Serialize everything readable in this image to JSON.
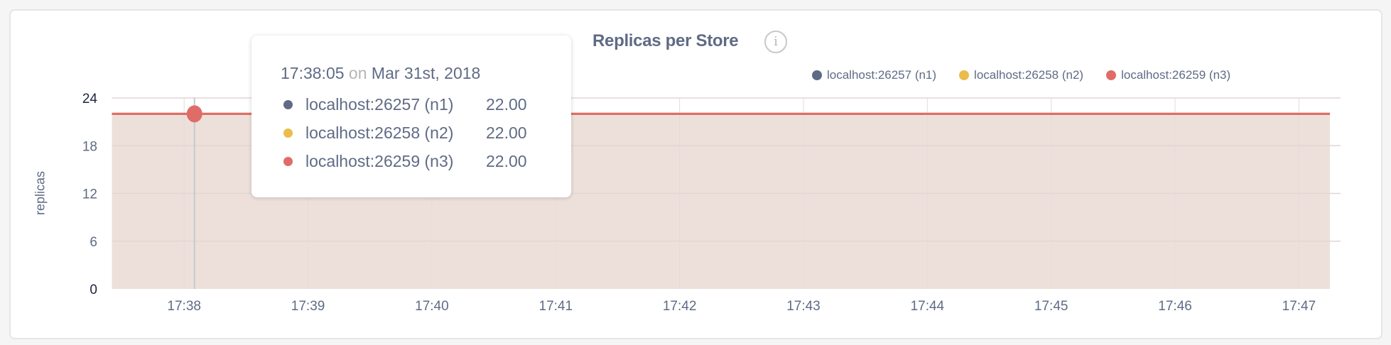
{
  "chart_data": {
    "type": "area",
    "title": "Replicas per Store",
    "ylabel": "replicas",
    "xlabel": "",
    "ylim": [
      0,
      24
    ],
    "yticks": [
      "0",
      "6",
      "12",
      "18",
      "24"
    ],
    "xlim": [
      "17:37:25",
      "17:47:15"
    ],
    "xticks": [
      "17:38",
      "17:39",
      "17:40",
      "17:41",
      "17:42",
      "17:43",
      "17:44",
      "17:45",
      "17:46",
      "17:47"
    ],
    "grid": true,
    "legend_position": "top-right",
    "series": [
      {
        "name": "localhost:26257 (n1)",
        "color": "#5f6b85",
        "points": [
          {
            "x": "17:37:25",
            "y": 22
          },
          {
            "x": "17:47:15",
            "y": 22
          }
        ]
      },
      {
        "name": "localhost:26258 (n2)",
        "color": "#e9bd4b",
        "points": [
          {
            "x": "17:37:25",
            "y": 22
          },
          {
            "x": "17:47:15",
            "y": 22
          }
        ]
      },
      {
        "name": "localhost:26259 (n3)",
        "color": "#e06c68",
        "points": [
          {
            "x": "17:37:25",
            "y": 22
          },
          {
            "x": "17:47:15",
            "y": 22
          }
        ]
      }
    ],
    "fill_color": "#ede0da"
  },
  "info_icon": "info-circle-icon",
  "tooltip": {
    "time": "17:38:05",
    "on": "on",
    "date": "Mar 31st, 2018",
    "rows": [
      {
        "label": "localhost:26257 (n1)",
        "value": "22.00",
        "color": "#5f6b85"
      },
      {
        "label": "localhost:26258 (n2)",
        "value": "22.00",
        "color": "#e9bd4b"
      },
      {
        "label": "localhost:26259 (n3)",
        "value": "22.00",
        "color": "#e06c68"
      }
    ]
  }
}
